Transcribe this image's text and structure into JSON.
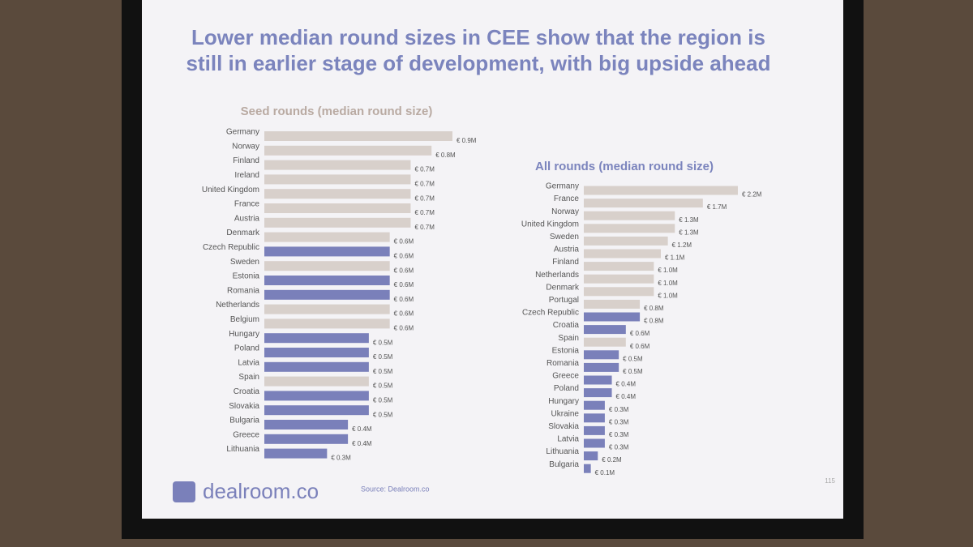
{
  "slide": {
    "title": "Lower median round sizes in CEE show that the region is still in earlier stage of development, with big upside ahead",
    "logo": "dealroom.co",
    "source": "Source: Dealroom.co",
    "page": "115"
  },
  "chart_data": [
    {
      "type": "bar",
      "orientation": "horizontal",
      "title": "Seed rounds (median round size)",
      "categories": [
        "Germany",
        "Norway",
        "Finland",
        "Ireland",
        "United Kingdom",
        "France",
        "Austria",
        "Denmark",
        "Czech Republic",
        "Sweden",
        "Estonia",
        "Romania",
        "Netherlands",
        "Belgium",
        "Hungary",
        "Poland",
        "Latvia",
        "Spain",
        "Croatia",
        "Slovakia",
        "Bulgaria",
        "Greece",
        "Lithuania"
      ],
      "values": [
        0.9,
        0.8,
        0.7,
        0.7,
        0.7,
        0.7,
        0.7,
        0.6,
        0.6,
        0.6,
        0.6,
        0.6,
        0.6,
        0.6,
        0.5,
        0.5,
        0.5,
        0.5,
        0.5,
        0.5,
        0.4,
        0.4,
        0.3
      ],
      "value_labels": [
        "€ 0.9M",
        "€ 0.8M",
        "€ 0.7M",
        "€ 0.7M",
        "€ 0.7M",
        "€ 0.7M",
        "€ 0.7M",
        "€ 0.6M",
        "€ 0.6M",
        "€ 0.6M",
        "€ 0.6M",
        "€ 0.6M",
        "€ 0.6M",
        "€ 0.6M",
        "€ 0.5M",
        "€ 0.5M",
        "€ 0.5M",
        "€ 0.5M",
        "€ 0.5M",
        "€ 0.5M",
        "€ 0.4M",
        "€ 0.4M",
        "€ 0.3M"
      ],
      "colors": [
        "#d8d0cb",
        "#d8d0cb",
        "#d8d0cb",
        "#d8d0cb",
        "#d8d0cb",
        "#d8d0cb",
        "#d8d0cb",
        "#d8d0cb",
        "#7a80ba",
        "#d8d0cb",
        "#7a80ba",
        "#7a80ba",
        "#d8d0cb",
        "#d8d0cb",
        "#7a80ba",
        "#7a80ba",
        "#7a80ba",
        "#d8d0cb",
        "#7a80ba",
        "#7a80ba",
        "#7a80ba",
        "#7a80ba",
        "#7a80ba"
      ]
    },
    {
      "type": "bar",
      "orientation": "horizontal",
      "title": "All rounds (median round size)",
      "categories": [
        "Germany",
        "France",
        "Norway",
        "United Kingdom",
        "Sweden",
        "Austria",
        "Finland",
        "Netherlands",
        "Denmark",
        "Portugal",
        "Czech Republic",
        "Croatia",
        "Spain",
        "Estonia",
        "Romania",
        "Greece",
        "Poland",
        "Hungary",
        "Ukraine",
        "Slovakia",
        "Latvia",
        "Lithuania",
        "Bulgaria"
      ],
      "values": [
        2.2,
        1.7,
        1.3,
        1.3,
        1.2,
        1.1,
        1.0,
        1.0,
        1.0,
        0.8,
        0.8,
        0.6,
        0.6,
        0.5,
        0.5,
        0.4,
        0.4,
        0.3,
        0.3,
        0.3,
        0.3,
        0.2,
        0.1
      ],
      "value_labels": [
        "€ 2.2M",
        "€ 1.7M",
        "€ 1.3M",
        "€ 1.3M",
        "€ 1.2M",
        "€ 1.1M",
        "€ 1.0M",
        "€ 1.0M",
        "€ 1.0M",
        "€ 0.8M",
        "€ 0.8M",
        "€ 0.6M",
        "€ 0.6M",
        "€ 0.5M",
        "€ 0.5M",
        "€ 0.4M",
        "€ 0.4M",
        "€ 0.3M",
        "€ 0.3M",
        "€ 0.3M",
        "€ 0.3M",
        "€ 0.2M",
        "€ 0.1M"
      ],
      "colors": [
        "#d8d0cb",
        "#d8d0cb",
        "#d8d0cb",
        "#d8d0cb",
        "#d8d0cb",
        "#d8d0cb",
        "#d8d0cb",
        "#d8d0cb",
        "#d8d0cb",
        "#d8d0cb",
        "#7a80ba",
        "#7a80ba",
        "#d8d0cb",
        "#7a80ba",
        "#7a80ba",
        "#7a80ba",
        "#7a80ba",
        "#7a80ba",
        "#7a80ba",
        "#7a80ba",
        "#7a80ba",
        "#7a80ba",
        "#7a80ba"
      ]
    }
  ]
}
